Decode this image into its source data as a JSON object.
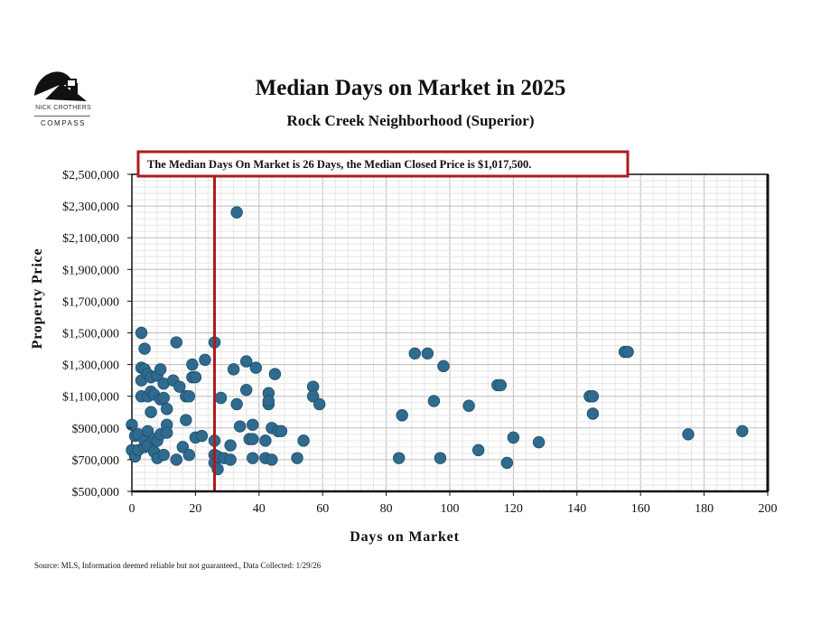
{
  "logo": {
    "brand": "NICK CROTHERS",
    "company": "COMPASS"
  },
  "chart_data": {
    "type": "scatter",
    "title": "Median Days on Market in 2025",
    "subtitle": "Rock Creek Neighborhood (Superior)",
    "xlabel": "Days on Market",
    "ylabel": "Property Price",
    "xlim": [
      0,
      200
    ],
    "ylim": [
      500000,
      2500000
    ],
    "x_ticks": [
      0,
      20,
      40,
      60,
      80,
      100,
      120,
      140,
      160,
      180,
      200
    ],
    "x_tick_labels": [
      "0",
      "20",
      "40",
      "60",
      "80",
      "100",
      "120",
      "140",
      "160",
      "180",
      "200"
    ],
    "y_ticks": [
      500000,
      700000,
      900000,
      1100000,
      1300000,
      1500000,
      1700000,
      1900000,
      2100000,
      2300000,
      2500000
    ],
    "y_tick_labels": [
      "$500,000",
      "$700,000",
      "$900,000",
      "$1,100,000",
      "$1,300,000",
      "$1,500,000",
      "$1,700,000",
      "$1,900,000",
      "$2,100,000",
      "$2,300,000",
      "$2,500,000"
    ],
    "median_days": 26,
    "annotation": "The Median Days On Market is 26 Days, the Median Closed Price is  $1,017,500.",
    "point_color": "#2f6b8e",
    "median_line_color": "#b0191e",
    "grid": true,
    "points": [
      [
        0,
        760000
      ],
      [
        0,
        920000
      ],
      [
        1,
        720000
      ],
      [
        1,
        850000
      ],
      [
        2,
        760000
      ],
      [
        2,
        860000
      ],
      [
        3,
        1500000
      ],
      [
        3,
        1280000
      ],
      [
        3,
        1100000
      ],
      [
        3,
        1200000
      ],
      [
        4,
        1400000
      ],
      [
        4,
        1270000
      ],
      [
        4,
        780000
      ],
      [
        4,
        820000
      ],
      [
        5,
        1240000
      ],
      [
        5,
        1100000
      ],
      [
        5,
        880000
      ],
      [
        5,
        790000
      ],
      [
        6,
        1000000
      ],
      [
        6,
        1130000
      ],
      [
        6,
        1220000
      ],
      [
        7,
        1110000
      ],
      [
        7,
        830000
      ],
      [
        7,
        750000
      ],
      [
        8,
        820000
      ],
      [
        8,
        710000
      ],
      [
        8,
        1230000
      ],
      [
        9,
        1270000
      ],
      [
        9,
        1080000
      ],
      [
        9,
        860000
      ],
      [
        10,
        1180000
      ],
      [
        10,
        1090000
      ],
      [
        10,
        730000
      ],
      [
        11,
        1020000
      ],
      [
        11,
        920000
      ],
      [
        11,
        870000
      ],
      [
        13,
        1200000
      ],
      [
        14,
        1440000
      ],
      [
        14,
        700000
      ],
      [
        15,
        1160000
      ],
      [
        16,
        780000
      ],
      [
        17,
        1100000
      ],
      [
        17,
        950000
      ],
      [
        18,
        1100000
      ],
      [
        18,
        730000
      ],
      [
        19,
        1300000
      ],
      [
        19,
        1220000
      ],
      [
        20,
        1220000
      ],
      [
        20,
        840000
      ],
      [
        22,
        850000
      ],
      [
        23,
        1330000
      ],
      [
        26,
        1440000
      ],
      [
        26,
        820000
      ],
      [
        26,
        730000
      ],
      [
        26,
        680000
      ],
      [
        27,
        720000
      ],
      [
        27,
        640000
      ],
      [
        28,
        1090000
      ],
      [
        29,
        710000
      ],
      [
        31,
        790000
      ],
      [
        31,
        700000
      ],
      [
        32,
        1270000
      ],
      [
        33,
        2260000
      ],
      [
        33,
        1050000
      ],
      [
        34,
        910000
      ],
      [
        36,
        1140000
      ],
      [
        36,
        1320000
      ],
      [
        37,
        830000
      ],
      [
        38,
        920000
      ],
      [
        38,
        830000
      ],
      [
        38,
        710000
      ],
      [
        39,
        1280000
      ],
      [
        42,
        820000
      ],
      [
        42,
        710000
      ],
      [
        43,
        1120000
      ],
      [
        43,
        1050000
      ],
      [
        43,
        1070000
      ],
      [
        44,
        900000
      ],
      [
        44,
        700000
      ],
      [
        45,
        1240000
      ],
      [
        46,
        880000
      ],
      [
        47,
        880000
      ],
      [
        52,
        710000
      ],
      [
        54,
        820000
      ],
      [
        57,
        1160000
      ],
      [
        57,
        1100000
      ],
      [
        59,
        1050000
      ],
      [
        84,
        710000
      ],
      [
        85,
        980000
      ],
      [
        89,
        1370000
      ],
      [
        93,
        1370000
      ],
      [
        95,
        1070000
      ],
      [
        97,
        710000
      ],
      [
        98,
        1290000
      ],
      [
        106,
        1040000
      ],
      [
        109,
        760000
      ],
      [
        115,
        1170000
      ],
      [
        116,
        1170000
      ],
      [
        118,
        680000
      ],
      [
        120,
        840000
      ],
      [
        128,
        810000
      ],
      [
        144,
        1100000
      ],
      [
        145,
        1100000
      ],
      [
        145,
        990000
      ],
      [
        155,
        1380000
      ],
      [
        156,
        1380000
      ],
      [
        175,
        860000
      ],
      [
        192,
        880000
      ]
    ]
  },
  "source_note": "Source: MLS, Information deemed reliable but not guaranteed., Data Collected: 1/29/26"
}
